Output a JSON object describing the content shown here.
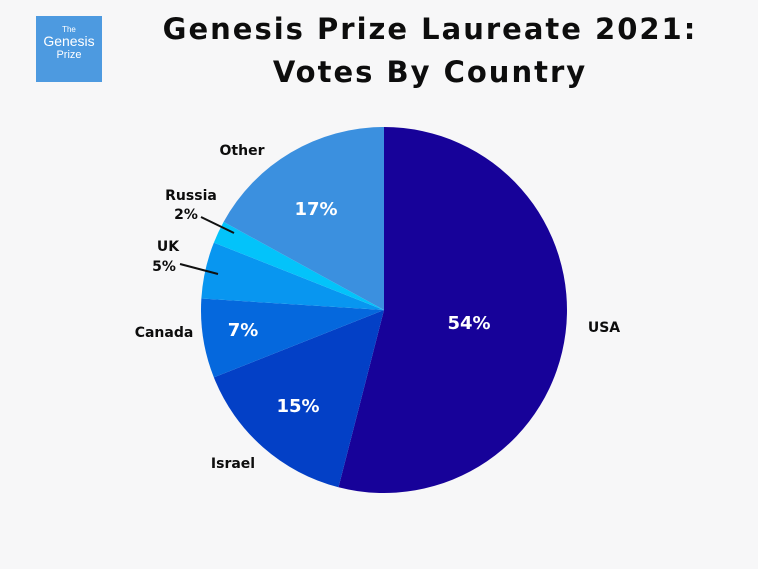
{
  "logo": {
    "line1": "The",
    "line2": "Genesis",
    "line3": "Prize"
  },
  "chart_data": {
    "type": "pie",
    "title_line1": "Genesis Prize Laureate 2021:",
    "title_line2": "Votes By Country",
    "slices": [
      {
        "category": "USA",
        "value": 54,
        "label": "54%",
        "color": "#170299"
      },
      {
        "category": "Israel",
        "value": 15,
        "label": "15%",
        "color": "#0340c6"
      },
      {
        "category": "Canada",
        "value": 7,
        "label": "7%",
        "color": "#0568dd"
      },
      {
        "category": "UK",
        "value": 5,
        "label": "5%",
        "color": "#0896f0"
      },
      {
        "category": "Russia",
        "value": 2,
        "label": "2%",
        "color": "#03c3fa"
      },
      {
        "category": "Other",
        "value": 17,
        "label": "17%",
        "color": "#3b90df"
      }
    ]
  }
}
